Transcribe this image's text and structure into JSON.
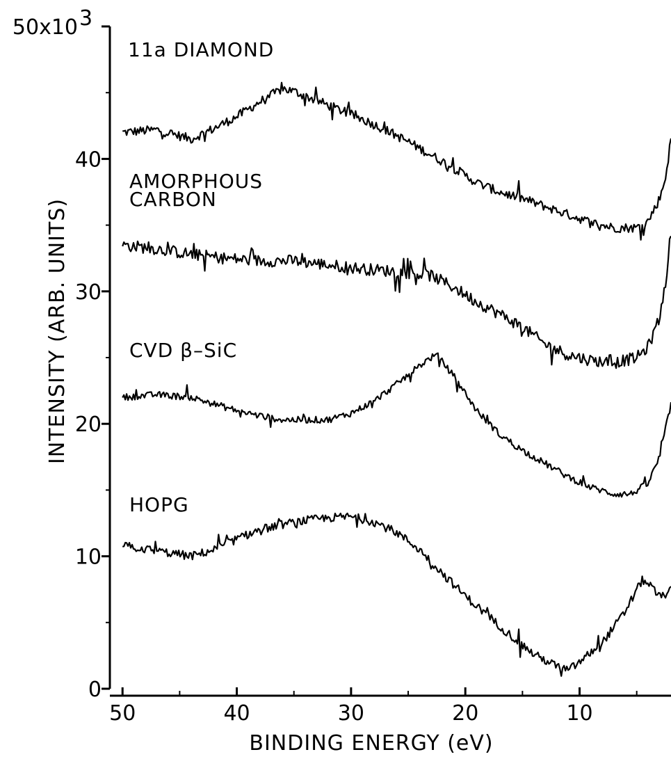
{
  "chart_data": {
    "type": "line",
    "xlabel": "BINDING ENERGY (eV)",
    "ylabel": "INTENSITY (ARB. UNITS)",
    "x_reversed": true,
    "xlim": [
      50.5,
      2
    ],
    "ylim": [
      0,
      50000
    ],
    "grid": false,
    "xticks": [
      50,
      40,
      30,
      20,
      10
    ],
    "xtick_labels": [
      "50",
      "40",
      "30",
      "20",
      "10"
    ],
    "yticks": [
      0,
      10000,
      20000,
      30000,
      40000,
      50000
    ],
    "ytick_labels": [
      "0",
      "10",
      "20",
      "30",
      "40",
      "50x10"
    ],
    "ytick_exponent": "3",
    "series": [
      {
        "name": "11a DIAMOND",
        "noise": 700,
        "points": [
          [
            50,
            42000
          ],
          [
            47,
            42200
          ],
          [
            44,
            41500
          ],
          [
            42,
            42300
          ],
          [
            40,
            43200
          ],
          [
            38,
            44300
          ],
          [
            36,
            45300
          ],
          [
            35,
            45100
          ],
          [
            33,
            44400
          ],
          [
            31,
            43700
          ],
          [
            29,
            43000
          ],
          [
            27,
            42200
          ],
          [
            25,
            41300
          ],
          [
            23,
            40300
          ],
          [
            21,
            39300
          ],
          [
            19,
            38200
          ],
          [
            17,
            37500
          ],
          [
            15,
            37000
          ],
          [
            13,
            36400
          ],
          [
            11,
            35800
          ],
          [
            9,
            35200
          ],
          [
            7,
            34800
          ],
          [
            5,
            34800
          ],
          [
            4,
            35300
          ],
          [
            3,
            37000
          ],
          [
            2.5,
            38500
          ],
          [
            2,
            41500
          ]
        ]
      },
      {
        "name": "AMORPHOUS CARBON",
        "noise": 900,
        "points": [
          [
            50,
            33500
          ],
          [
            47,
            33200
          ],
          [
            44,
            32800
          ],
          [
            41,
            32500
          ],
          [
            38,
            32300
          ],
          [
            35,
            32300
          ],
          [
            32,
            32000
          ],
          [
            29,
            31700
          ],
          [
            26,
            31500
          ],
          [
            23,
            31200
          ],
          [
            21,
            30300
          ],
          [
            19,
            29200
          ],
          [
            17,
            28300
          ],
          [
            15,
            27300
          ],
          [
            13,
            26000
          ],
          [
            11,
            25200
          ],
          [
            9,
            24800
          ],
          [
            7,
            24600
          ],
          [
            5,
            25000
          ],
          [
            4,
            25800
          ],
          [
            3,
            28000
          ],
          [
            2.5,
            30500
          ],
          [
            2,
            34500
          ]
        ]
      },
      {
        "name": "CVD β–SiC",
        "noise": 500,
        "points": [
          [
            50,
            22000
          ],
          [
            47,
            22200
          ],
          [
            44,
            22000
          ],
          [
            42,
            21500
          ],
          [
            40,
            21000
          ],
          [
            38,
            20600
          ],
          [
            36,
            20300
          ],
          [
            34,
            20300
          ],
          [
            32,
            20300
          ],
          [
            30,
            20800
          ],
          [
            28,
            21700
          ],
          [
            26,
            23000
          ],
          [
            24,
            24400
          ],
          [
            23,
            25000
          ],
          [
            22.5,
            25200
          ],
          [
            21,
            23600
          ],
          [
            19,
            21000
          ],
          [
            17,
            19200
          ],
          [
            15,
            18000
          ],
          [
            13,
            17000
          ],
          [
            11,
            16000
          ],
          [
            9,
            15200
          ],
          [
            7,
            14700
          ],
          [
            5.5,
            14700
          ],
          [
            4,
            15500
          ],
          [
            3,
            17500
          ],
          [
            2.5,
            19500
          ],
          [
            2,
            21500
          ]
        ]
      },
      {
        "name": "HOPG",
        "noise": 650,
        "points": [
          [
            50,
            10800
          ],
          [
            47,
            10400
          ],
          [
            44,
            10000
          ],
          [
            42,
            10500
          ],
          [
            40,
            11300
          ],
          [
            38,
            12000
          ],
          [
            36,
            12400
          ],
          [
            34,
            12700
          ],
          [
            32,
            12900
          ],
          [
            30,
            13000
          ],
          [
            28,
            12600
          ],
          [
            26,
            11800
          ],
          [
            24,
            10500
          ],
          [
            22,
            8700
          ],
          [
            20,
            7000
          ],
          [
            18,
            5500
          ],
          [
            16,
            4000
          ],
          [
            14,
            2600
          ],
          [
            12,
            1700
          ],
          [
            11,
            1400
          ],
          [
            10,
            2000
          ],
          [
            8,
            3500
          ],
          [
            6,
            5800
          ],
          [
            5,
            7500
          ],
          [
            4.5,
            8200
          ],
          [
            4,
            8000
          ],
          [
            3,
            6900
          ],
          [
            2,
            7400
          ]
        ]
      }
    ]
  },
  "labels": {
    "diamond": "11a DIAMOND",
    "amorphous_line1": "AMORPHOUS",
    "amorphous_line2": "CARBON",
    "sic": "CVD β–SiC",
    "hopg": "HOPG"
  }
}
